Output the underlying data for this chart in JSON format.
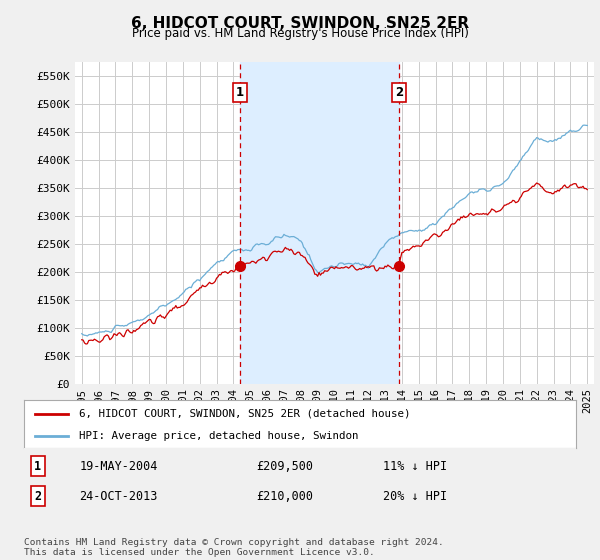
{
  "title": "6, HIDCOT COURT, SWINDON, SN25 2ER",
  "subtitle": "Price paid vs. HM Land Registry's House Price Index (HPI)",
  "ylim": [
    0,
    575000
  ],
  "yticks": [
    0,
    50000,
    100000,
    150000,
    200000,
    250000,
    300000,
    350000,
    400000,
    450000,
    500000,
    550000
  ],
  "ytick_labels": [
    "£0",
    "£50K",
    "£100K",
    "£150K",
    "£200K",
    "£250K",
    "£300K",
    "£350K",
    "£400K",
    "£450K",
    "£500K",
    "£550K"
  ],
  "hpi_color": "#6baed6",
  "price_color": "#cc0000",
  "vline_color": "#cc0000",
  "shade_color": "#ddeeff",
  "transaction1": {
    "date_num": 2004.38,
    "price": 209500,
    "label": "1"
  },
  "transaction2": {
    "date_num": 2013.81,
    "price": 210000,
    "label": "2"
  },
  "legend_property": "6, HIDCOT COURT, SWINDON, SN25 2ER (detached house)",
  "legend_hpi": "HPI: Average price, detached house, Swindon",
  "footer": "Contains HM Land Registry data © Crown copyright and database right 2024.\nThis data is licensed under the Open Government Licence v3.0.",
  "background_color": "#f0f0f0",
  "plot_background": "#ffffff",
  "grid_color": "#cccccc"
}
